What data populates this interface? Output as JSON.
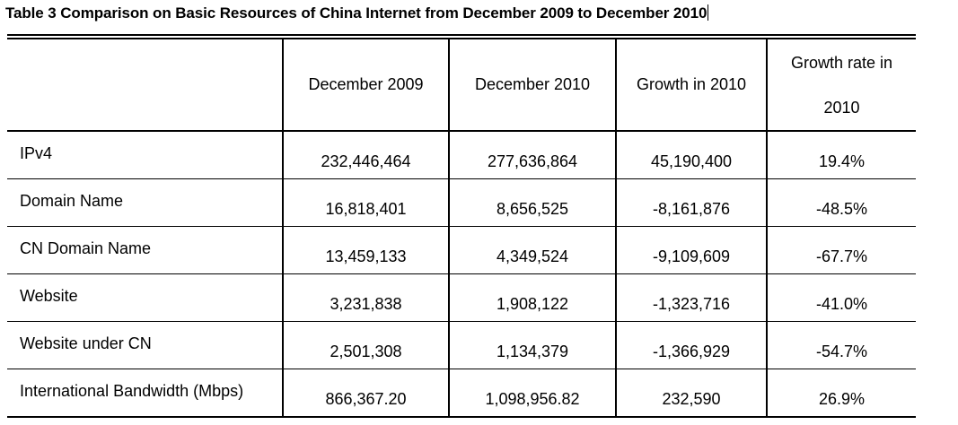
{
  "table": {
    "title": "Table 3 Comparison on Basic Resources of China Internet from December 2009 to December 2010",
    "headers": [
      "",
      "December 2009",
      "December 2010",
      "Growth in 2010",
      "Growth rate in 2010"
    ],
    "header_rate_line1": "Growth rate in",
    "header_rate_line2": "2010",
    "rows": [
      {
        "label": "IPv4",
        "dec2009": "232,446,464",
        "dec2010": "277,636,864",
        "growth": "45,190,400",
        "rate": "19.4%"
      },
      {
        "label": "Domain Name",
        "dec2009": "16,818,401",
        "dec2010": "8,656,525",
        "growth": "-8,161,876",
        "rate": "-48.5%"
      },
      {
        "label": "CN Domain Name",
        "dec2009": "13,459,133",
        "dec2010": "4,349,524",
        "growth": "-9,109,609",
        "rate": "-67.7%"
      },
      {
        "label": "Website",
        "dec2009": "3,231,838",
        "dec2010": "1,908,122",
        "growth": "-1,323,716",
        "rate": "-41.0%"
      },
      {
        "label": "Website under CN",
        "dec2009": "2,501,308",
        "dec2010": "1,134,379",
        "growth": "-1,366,929",
        "rate": "-54.7%"
      },
      {
        "label": "International Bandwidth (Mbps)",
        "dec2009": "866,367.20",
        "dec2010": "1,098,956.82",
        "growth": "232,590",
        "rate": "26.9%"
      }
    ]
  }
}
